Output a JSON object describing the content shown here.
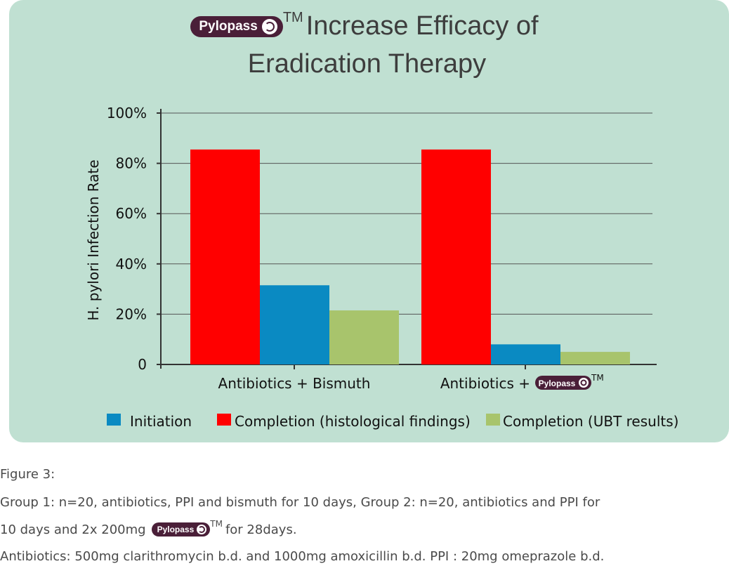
{
  "title": {
    "brand": "Pylopass",
    "tm": "TM",
    "line1": "Increase Efficacy of",
    "line2": "Eradication Therapy"
  },
  "chart_data": {
    "type": "bar",
    "categories": [
      "Antibiotics + Bismuth",
      "Antibiotics + "
    ],
    "category_brand": [
      "",
      "Pylopass"
    ],
    "category_tm": [
      "",
      "TM"
    ],
    "series": [
      {
        "name": "Completion (histological findings)",
        "values": [
          85.5,
          85.5
        ],
        "color": "#ff0000"
      },
      {
        "name": "Initiation",
        "values": [
          31.5,
          8
        ],
        "color": "#0a8ac2"
      },
      {
        "name": "Completion (UBT results)",
        "values": [
          21.5,
          5
        ],
        "color": "#a8c46c"
      }
    ],
    "legend_order": [
      1,
      0,
      2
    ],
    "ylabel": "H. pylori Infection Rate",
    "ylim": [
      0,
      100
    ],
    "yticks": [
      0,
      20,
      40,
      60,
      80,
      100
    ],
    "ytick_labels": [
      "0",
      "20%",
      "40%",
      "60%",
      "80%",
      "100%"
    ],
    "grid": true,
    "legend_position": "bottom"
  },
  "caption": {
    "line1": "Figure 3:",
    "line2": "Group 1: n=20, antibiotics, PPI and bismuth for 10 days, Group 2: n=20, antibiotics and PPI for",
    "line3_pre": "10 days and 2x 200mg",
    "line3_brand": "Pylopass",
    "line3_tm": "TM",
    "line3_post": "for 28days.",
    "line4": "Antibiotics: 500mg clarithromycin b.d. and 1000mg amoxicillin b.d. PPI : 20mg omeprazole b.d."
  }
}
